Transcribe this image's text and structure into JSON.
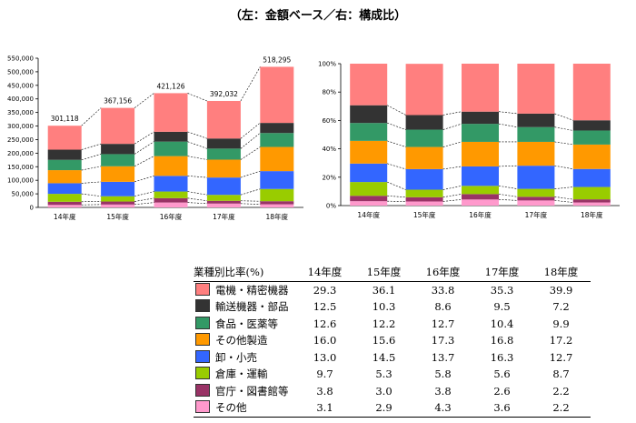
{
  "page": {
    "title": "（左：金額ベース／右：構成比）"
  },
  "chart_data": [
    {
      "type": "bar",
      "stacked": true,
      "categories": [
        "14年度",
        "15年度",
        "16年度",
        "17年度",
        "18年度"
      ],
      "totals": [
        301118,
        367156,
        421126,
        392032,
        518295
      ],
      "ylim": [
        0,
        550000
      ],
      "yticks": [
        "0",
        "50,000",
        "100,000",
        "150,000",
        "200,000",
        "250,000",
        "300,000",
        "350,000",
        "400,000",
        "450,000",
        "500,000",
        "550,000"
      ],
      "series_ref": "table"
    },
    {
      "type": "bar",
      "stacked": true,
      "percent": true,
      "categories": [
        "14年度",
        "15年度",
        "16年度",
        "17年度",
        "18年度"
      ],
      "ylim": [
        0,
        100
      ],
      "yticks": [
        "0%",
        "20%",
        "40%",
        "60%",
        "80%",
        "100%"
      ],
      "series_ref": "table"
    },
    {
      "type": "table",
      "header": "業種別比率(%)",
      "columns": [
        "14年度",
        "15年度",
        "16年度",
        "17年度",
        "18年度"
      ],
      "rows": [
        {
          "name": "電機・精密機器",
          "color": "#FF7F7F",
          "values": [
            "29.3",
            "36.1",
            "33.8",
            "35.3",
            "39.9"
          ]
        },
        {
          "name": "輸送機器・部品",
          "color": "#333333",
          "values": [
            "12.5",
            "10.3",
            "8.6",
            "9.5",
            "7.2"
          ]
        },
        {
          "name": "食品・医薬等",
          "color": "#339966",
          "values": [
            "12.6",
            "12.2",
            "12.7",
            "10.4",
            "9.9"
          ]
        },
        {
          "name": "その他製造",
          "color": "#FF9900",
          "values": [
            "16.0",
            "15.6",
            "17.3",
            "16.8",
            "17.2"
          ]
        },
        {
          "name": "卸・小売",
          "color": "#3366FF",
          "values": [
            "13.0",
            "14.5",
            "13.7",
            "16.3",
            "12.7"
          ]
        },
        {
          "name": "倉庫・運輸",
          "color": "#99CC00",
          "values": [
            "9.7",
            "5.3",
            "5.8",
            "5.6",
            "8.7"
          ]
        },
        {
          "name": "官庁・図書館等",
          "color": "#993366",
          "values": [
            "3.8",
            "3.0",
            "3.8",
            "2.6",
            "2.2"
          ]
        },
        {
          "name": "その他",
          "color": "#FF99CC",
          "values": [
            "3.1",
            "2.9",
            "4.3",
            "3.6",
            "2.2"
          ]
        }
      ]
    }
  ]
}
